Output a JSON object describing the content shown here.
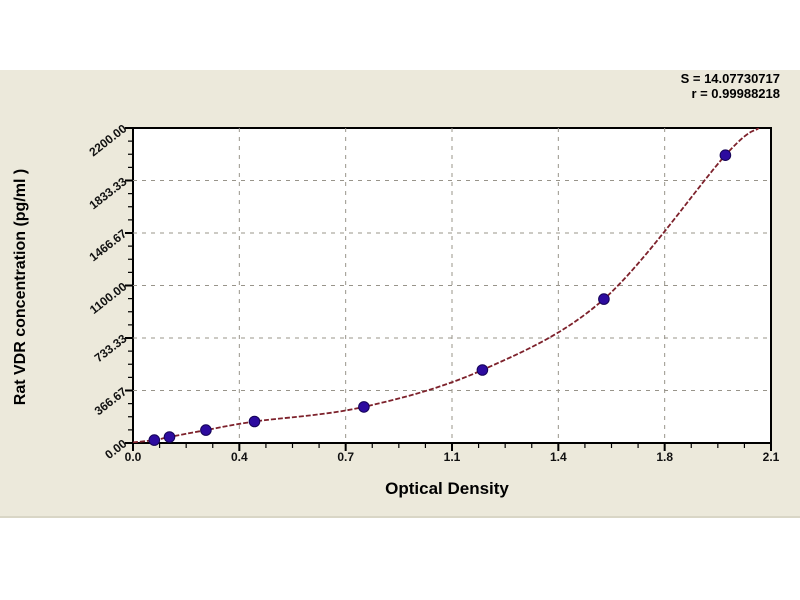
{
  "page": {
    "background": "#ffffff",
    "panel_background": "#ece9db"
  },
  "colors": {
    "grid": "#98948a",
    "axis": "#000000",
    "tick_label": "#111111",
    "marker": "#2d0b9f",
    "marker_edge": "#150357",
    "curve": "#7d212b"
  },
  "chart_data": {
    "type": "scatter",
    "title": "",
    "xlabel": "Optical Density",
    "ylabel": "Rat VDR concentration (pg/ml )",
    "xlim": [
      0,
      2.1
    ],
    "ylim": [
      0,
      2200
    ],
    "x_major_tick_values": [
      0,
      0.35,
      0.7,
      1.05,
      1.4,
      1.75,
      2.1
    ],
    "x_tick_labels": [
      "0.0",
      "0.4",
      "0.7",
      "1.1",
      "1.4",
      "1.8",
      "2.1"
    ],
    "y_major_tick_values": [
      0,
      366.67,
      733.33,
      1100,
      1466.67,
      1833.33,
      2200
    ],
    "y_tick_labels": [
      "0.00",
      "366.67",
      "733.33",
      "1100.00",
      "1466.67",
      "1833.33",
      "2200.00"
    ],
    "minor_ticks_per_major": 3,
    "grid": "dashed-major",
    "legend_position": "none",
    "annotations": [
      "S = 14.07730717",
      "r = 0.99988218"
    ],
    "series": [
      {
        "name": "standard-points",
        "type": "scatter",
        "color": "#2d0b9f",
        "points": [
          [
            0.07,
            20
          ],
          [
            0.12,
            42
          ],
          [
            0.24,
            90
          ],
          [
            0.4,
            150
          ],
          [
            0.76,
            252
          ],
          [
            1.15,
            510
          ],
          [
            1.55,
            1005
          ],
          [
            1.95,
            2010
          ]
        ]
      },
      {
        "name": "fitted-curve",
        "type": "line",
        "color": "#7d212b",
        "x_start": 0,
        "y_start": 4,
        "x_end": 2.06,
        "y_end": 2200
      }
    ]
  }
}
